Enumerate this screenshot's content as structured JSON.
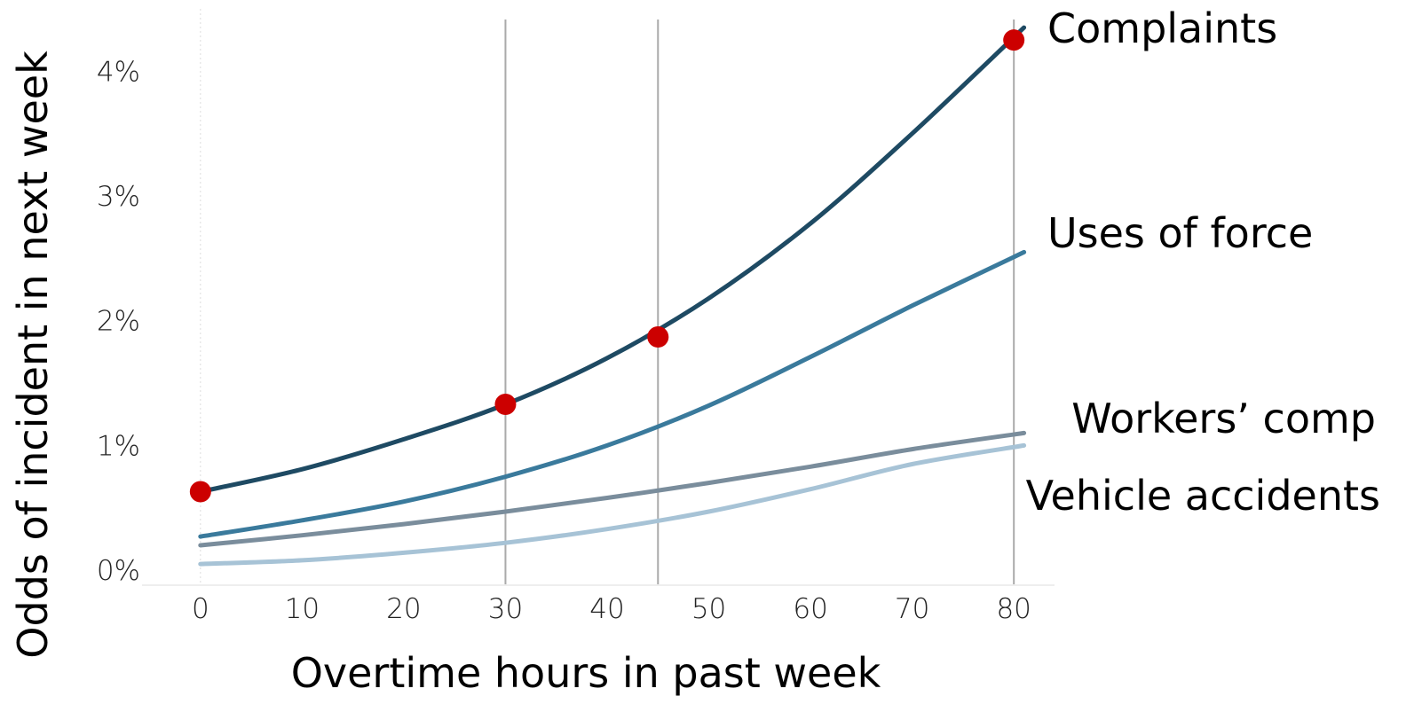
{
  "chart_data": {
    "type": "line",
    "title": "",
    "xlabel": "Overtime hours in past week",
    "ylabel": "Odds of incident in next week",
    "x_ticks": [
      0,
      10,
      20,
      30,
      40,
      50,
      60,
      70,
      80
    ],
    "x_tick_labels": [
      "0",
      "10",
      "20",
      "30",
      "40",
      "50",
      "60",
      "70",
      "80"
    ],
    "y_ticks": [
      0,
      1,
      2,
      3,
      4
    ],
    "y_tick_labels": [
      "0%",
      "1%",
      "2%",
      "3%",
      "4%"
    ],
    "xlim": [
      -4,
      84
    ],
    "ylim": [
      -0.12,
      4.5
    ],
    "reference_lines_x": [
      30,
      45,
      80
    ],
    "x": [
      0,
      10,
      20,
      30,
      40,
      50,
      60,
      70,
      81
    ],
    "series": [
      {
        "name": "Complaints",
        "color": "#1e4a63",
        "values": [
          0.63,
          0.81,
          1.05,
          1.33,
          1.7,
          2.18,
          2.78,
          3.5,
          4.35
        ]
      },
      {
        "name": "Uses of force",
        "color": "#3a7a9c",
        "values": [
          0.27,
          0.4,
          0.55,
          0.75,
          1.0,
          1.32,
          1.71,
          2.12,
          2.55
        ]
      },
      {
        "name": "Workers’ comp",
        "color": "#7a8d9c",
        "values": [
          0.2,
          0.28,
          0.37,
          0.47,
          0.58,
          0.7,
          0.83,
          0.97,
          1.1
        ]
      },
      {
        "name": "Vehicle accidents",
        "color": "#a7c3d6",
        "values": [
          0.05,
          0.08,
          0.14,
          0.22,
          0.33,
          0.47,
          0.65,
          0.85,
          1.0
        ]
      }
    ],
    "highlight_points": {
      "series": "Complaints",
      "color": "#cc0000",
      "points": [
        {
          "x": 0,
          "y": 0.63
        },
        {
          "x": 30,
          "y": 1.33
        },
        {
          "x": 45,
          "y": 1.87
        },
        {
          "x": 80,
          "y": 4.25
        }
      ]
    },
    "grid": false,
    "legend": "direct labels at right"
  }
}
